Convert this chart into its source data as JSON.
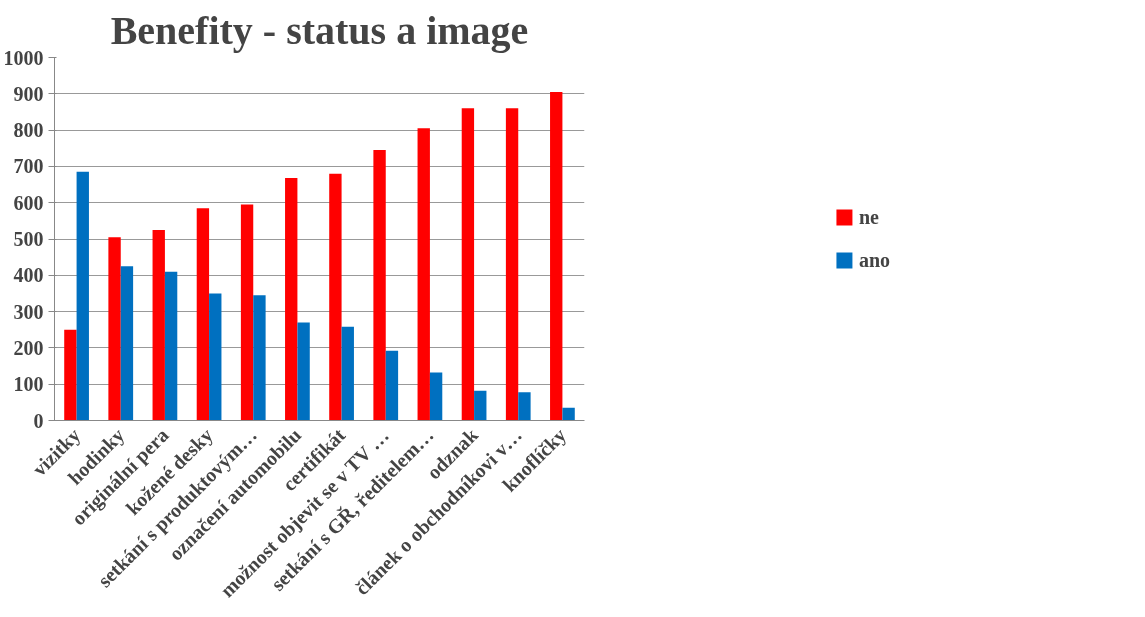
{
  "chart_data": {
    "type": "bar",
    "title": "Benefity - status a image",
    "categories": [
      "vizitky",
      "hodinky",
      "originální pera",
      "kožené desky",
      "setkání s produktovým…",
      "označení automobilu",
      "certifikát",
      "možnost objevit se v TV …",
      "setkání s GŘ, ředitelem…",
      "odznak",
      "článek o obchodníkovi v…",
      "knoflíčky"
    ],
    "series": [
      {
        "name": "ne",
        "color": "#ff0000",
        "values": [
          250,
          505,
          525,
          585,
          595,
          668,
          680,
          745,
          805,
          860,
          860,
          905
        ]
      },
      {
        "name": "ano",
        "color": "#0070c0",
        "values": [
          685,
          425,
          410,
          350,
          345,
          270,
          258,
          192,
          132,
          82,
          78,
          35
        ]
      }
    ],
    "ylim": [
      0,
      1000
    ],
    "yticks": [
      0,
      100,
      200,
      300,
      400,
      500,
      600,
      700,
      800,
      900,
      1000
    ],
    "grid": "y",
    "legend": "right"
  }
}
